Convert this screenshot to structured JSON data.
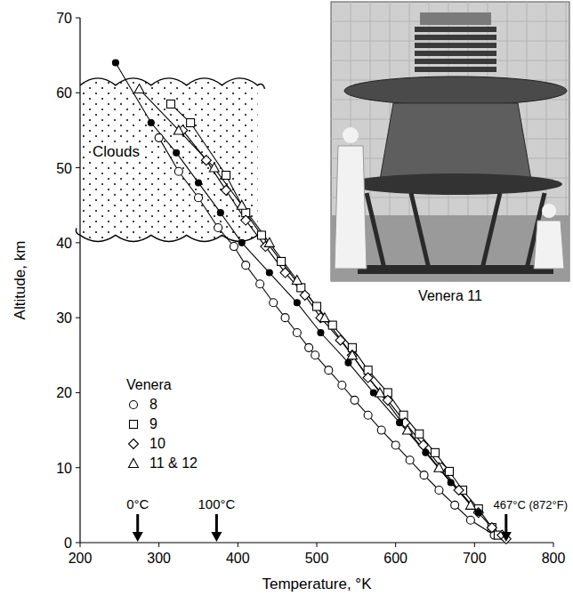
{
  "chart_data": {
    "type": "line",
    "x_label": "Temperature, °K",
    "y_label": "Altitude, km",
    "xlim": [
      200,
      800
    ],
    "ylim": [
      0,
      70
    ],
    "xticks": [
      200,
      300,
      400,
      500,
      600,
      700,
      800
    ],
    "yticks": [
      0,
      10,
      20,
      30,
      40,
      50,
      60,
      70
    ],
    "grid": false,
    "legend": "center left",
    "legend_title": "Venera",
    "series": [
      {
        "name": "8",
        "marker": "circle",
        "color": "#000000",
        "line_style": "solid",
        "x": [
          300,
          325,
          350,
          375,
          395,
          410,
          428,
          445,
          460,
          475,
          490,
          498,
          515,
          532,
          548,
          565,
          582,
          600,
          618,
          636,
          655,
          675,
          695,
          725
        ],
        "values": [
          54,
          49.5,
          46,
          42,
          39.5,
          37,
          34.5,
          32,
          30,
          28,
          26,
          25,
          23,
          21,
          19,
          17,
          15,
          13,
          11,
          9,
          7,
          5,
          3,
          1
        ]
      },
      {
        "name": "9",
        "marker": "square",
        "color": "#000000",
        "line_style": "solid",
        "x": [
          315,
          340,
          385,
          410,
          430,
          455,
          480,
          500,
          520,
          545,
          565,
          590,
          610,
          630,
          650,
          668,
          685,
          705,
          722,
          730
        ],
        "values": [
          58.5,
          56,
          49,
          44,
          41,
          37.5,
          34,
          31.5,
          29,
          26,
          23,
          20,
          17,
          14.5,
          12,
          9.5,
          7,
          4.5,
          2,
          1
        ]
      },
      {
        "name": "10",
        "marker": "diamond",
        "color": "#000000",
        "line_style": "solid",
        "x": [
          330,
          360,
          385,
          410,
          435,
          460,
          485,
          505,
          530,
          545,
          565,
          590,
          612,
          635,
          658,
          680,
          705,
          722,
          735,
          740
        ],
        "values": [
          55,
          51,
          47,
          43,
          39.5,
          36,
          33,
          30,
          27,
          25,
          22,
          19,
          16,
          13,
          10,
          7,
          4,
          2,
          1,
          0.5
        ]
      },
      {
        "name": "11 & 12",
        "marker": "triangle",
        "color": "#000000",
        "line_style": "solid",
        "x": [
          275,
          325,
          370,
          405,
          440,
          475,
          510,
          545,
          580,
          615,
          655,
          695
        ],
        "values": [
          60.5,
          55,
          50,
          45,
          40,
          35,
          30,
          25,
          20,
          15,
          10,
          5
        ]
      },
      {
        "marker": "dot",
        "color": "#000000",
        "line_style": "solid",
        "x": [
          245,
          290,
          322,
          350,
          378,
          405,
          440,
          475,
          505,
          540,
          572,
          605,
          638,
          670,
          705
        ],
        "values": [
          64,
          56,
          52,
          48,
          44,
          40,
          36,
          32,
          28,
          24,
          20,
          16,
          12,
          8,
          4
        ]
      }
    ],
    "annotations": [
      {
        "text": "0°C",
        "x": 273
      },
      {
        "text": "100°C",
        "x": 373
      },
      {
        "text": "467°C (872°F)",
        "x": 740
      }
    ],
    "clouds": {
      "label": "Clouds",
      "x": [
        200,
        425
      ],
      "y": [
        41,
        61
      ]
    },
    "inset": {
      "caption": "Venera 11"
    }
  }
}
